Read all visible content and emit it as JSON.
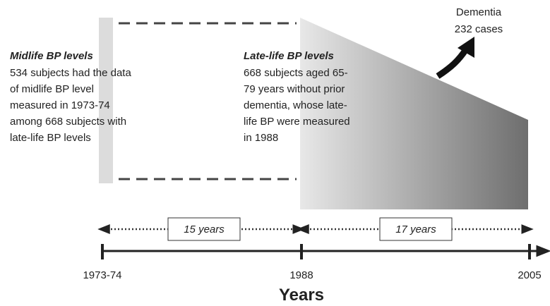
{
  "outcome": {
    "title": "Dementia",
    "count": "232 cases"
  },
  "midlife": {
    "title": "Midlife BP levels",
    "lines": [
      "534 subjects had the data",
      "of midlife BP level",
      "measured in 1973-74",
      "among 668 subjects with",
      "late-life BP levels"
    ]
  },
  "latelife": {
    "title": "Late-life BP levels",
    "lines": [
      "668 subjects aged 65-",
      "79 years without prior",
      "dementia, whose late-",
      "life BP were measured",
      "in 1988"
    ]
  },
  "intervals": [
    "15 years",
    "17 years"
  ],
  "timeline": {
    "ticks": [
      "1973-74",
      "1988",
      "2005"
    ],
    "label": "Years"
  }
}
